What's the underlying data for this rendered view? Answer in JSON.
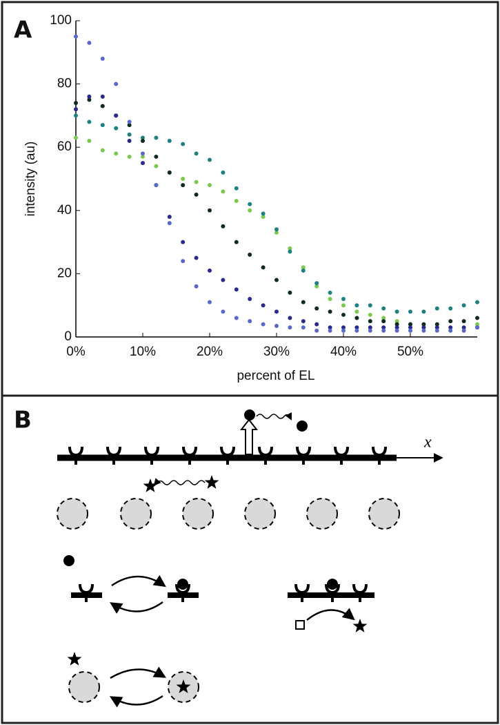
{
  "panels": {
    "a": "A",
    "b": "B"
  },
  "chart_data": {
    "type": "scatter",
    "xlabel": "percent of EL",
    "ylabel": "intensity (au)",
    "x": [
      0,
      2,
      4,
      6,
      8,
      10,
      12,
      14,
      16,
      18,
      20,
      22,
      24,
      26,
      28,
      30,
      32,
      34,
      36,
      38,
      40,
      42,
      44,
      46,
      48,
      50,
      52,
      54,
      56,
      58,
      60
    ],
    "xlim": [
      0,
      60
    ],
    "ylim": [
      0,
      100
    ],
    "xticks": [
      {
        "value": 0,
        "label": "0%"
      },
      {
        "value": 10,
        "label": "10%"
      },
      {
        "value": 20,
        "label": "20%"
      },
      {
        "value": 30,
        "label": "30%"
      },
      {
        "value": 40,
        "label": "40%"
      },
      {
        "value": 50,
        "label": "50%"
      }
    ],
    "yticks": [
      0,
      20,
      40,
      60,
      80,
      100
    ],
    "series": [
      {
        "color": "#7cc94e",
        "values": [
          63,
          62,
          59,
          58,
          57,
          57,
          54,
          52,
          50,
          49,
          48,
          46,
          43,
          40,
          38,
          33,
          28,
          22,
          16,
          12,
          10,
          8,
          7,
          6,
          5,
          4,
          3,
          3,
          2,
          2,
          4
        ]
      },
      {
        "color": "#1f8080",
        "values": [
          70,
          68,
          67,
          66,
          64,
          63,
          63,
          62,
          61,
          58,
          56,
          52,
          47,
          42,
          39,
          34,
          27,
          21,
          17,
          14,
          12,
          10,
          10,
          9,
          8,
          8,
          8,
          9,
          9,
          10,
          11
        ]
      },
      {
        "color": "#0f2a20",
        "values": [
          74,
          75,
          73,
          70,
          67,
          62,
          57,
          52,
          48,
          45,
          40,
          35,
          30,
          26,
          22,
          18,
          14,
          11,
          9,
          8,
          7,
          6,
          5,
          5,
          4,
          4,
          4,
          4,
          5,
          5,
          6
        ]
      },
      {
        "color": "#2b2a8c",
        "values": [
          72,
          76,
          76,
          70,
          62,
          55,
          48,
          38,
          30,
          25,
          21,
          18,
          15,
          12,
          10,
          8,
          6,
          5,
          4,
          3,
          3,
          3,
          3,
          3,
          3,
          3,
          3,
          3,
          3,
          3,
          3
        ]
      },
      {
        "color": "#5a68cc",
        "values": [
          95,
          93,
          88,
          80,
          68,
          58,
          48,
          36,
          24,
          16,
          11,
          8,
          6,
          5,
          4,
          3.5,
          3,
          3,
          2,
          2,
          2,
          2,
          2,
          2,
          2,
          2,
          2,
          2,
          2,
          2,
          3
        ]
      }
    ]
  },
  "diagram": {
    "axis_label": "x"
  }
}
